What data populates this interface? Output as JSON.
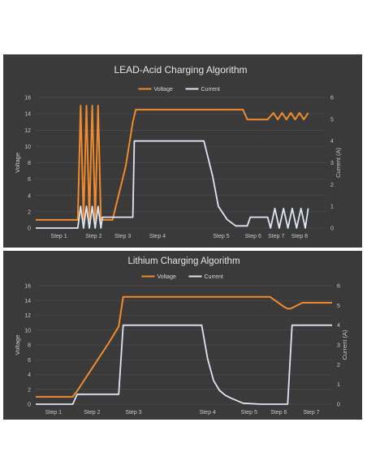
{
  "chart_data": [
    {
      "type": "line",
      "title": "LEAD-Acid Charging Algorithm",
      "ylabel": "Voltage",
      "y2label": "Current (A)",
      "ylim": [
        0,
        16
      ],
      "y2lim": [
        0,
        6
      ],
      "yticks": [
        "0",
        "2",
        "4",
        "6",
        "8",
        "10",
        "12",
        "14",
        "16"
      ],
      "y2ticks": [
        "0",
        "1",
        "2",
        "3",
        "4",
        "5",
        "6"
      ],
      "xlim": [
        0,
        100
      ],
      "grid": true,
      "legend_position": "top-center",
      "colors": {
        "voltage": "#f08a2c",
        "current": "#dfe5f2"
      },
      "step_labels": [
        {
          "label": "Step 1",
          "x": 8
        },
        {
          "label": "Step 2",
          "x": 20
        },
        {
          "label": "Step 3",
          "x": 30
        },
        {
          "label": "Step 4",
          "x": 42
        },
        {
          "label": "Step 5",
          "x": 64
        },
        {
          "label": "Step 6",
          "x": 75
        },
        {
          "label": "Step 7",
          "x": 83
        },
        {
          "label": "Step 8",
          "x": 91
        }
      ],
      "series": [
        {
          "name": "Voltage",
          "axis": "left",
          "x": [
            0,
            14.5,
            15.5,
            16.5,
            17.5,
            18.5,
            19.5,
            20.5,
            21.5,
            22.5,
            23,
            26.5,
            31,
            33.5,
            34.5,
            71.5,
            73,
            80,
            82,
            83.5,
            85,
            86.5,
            88,
            89.5,
            91,
            92.5,
            94
          ],
          "y": [
            1,
            1,
            15,
            1,
            15,
            1,
            15,
            1,
            15,
            1,
            1,
            1,
            7.5,
            13,
            14.5,
            14.5,
            13.3,
            13.3,
            14.1,
            13.3,
            14.1,
            13.3,
            14.1,
            13.3,
            14.1,
            13.3,
            14.1
          ]
        },
        {
          "name": "Current",
          "axis": "right",
          "x": [
            0,
            14.5,
            15.5,
            16.5,
            17.5,
            18.5,
            19.5,
            20.5,
            21.5,
            22.5,
            23,
            33.5,
            34,
            58,
            61,
            63,
            66,
            69,
            73,
            74,
            80,
            81,
            82.5,
            84,
            85.5,
            87,
            88.5,
            90,
            91.5,
            93,
            94
          ],
          "y": [
            0,
            0,
            1,
            0,
            1,
            0,
            1,
            0,
            1,
            0,
            0.5,
            0.5,
            4,
            4,
            2.4,
            1,
            0.4,
            0.1,
            0.1,
            0.5,
            0.5,
            0,
            0.9,
            0,
            0.9,
            0,
            0.9,
            0,
            0.9,
            0,
            0.9
          ]
        }
      ]
    },
    {
      "type": "line",
      "title": "Lithium Charging Algorithm",
      "ylabel": "Voltage",
      "y2label": "Current (A)",
      "ylim": [
        0,
        16
      ],
      "y2lim": [
        0,
        6
      ],
      "yticks": [
        "0",
        "2",
        "4",
        "6",
        "8",
        "10",
        "12",
        "14",
        "16"
      ],
      "y2ticks": [
        "0",
        "1",
        "2",
        "3",
        "4",
        "5",
        "6"
      ],
      "xlim": [
        0,
        100
      ],
      "grid": true,
      "legend_position": "top-center",
      "colors": {
        "voltage": "#f08a2c",
        "current": "#dfe5f2"
      },
      "step_labels": [
        {
          "label": "Step 1",
          "x": 6
        },
        {
          "label": "Step 2",
          "x": 19
        },
        {
          "label": "Step 3",
          "x": 33
        },
        {
          "label": "Step 4",
          "x": 58
        },
        {
          "label": "Step 5",
          "x": 72
        },
        {
          "label": "Step 6",
          "x": 82
        },
        {
          "label": "Step 7",
          "x": 93
        }
      ],
      "series": [
        {
          "name": "Voltage",
          "axis": "left",
          "x": [
            0,
            12.5,
            14,
            25,
            28,
            29.5,
            79,
            84,
            85,
            86,
            88,
            90,
            100
          ],
          "y": [
            1,
            1,
            1.8,
            8.5,
            10.5,
            14.5,
            14.5,
            13.1,
            12.9,
            12.9,
            13.3,
            13.7,
            13.7
          ]
        },
        {
          "name": "Current",
          "axis": "right",
          "x": [
            0,
            12.5,
            14,
            28,
            29.5,
            56,
            58,
            60,
            62,
            64,
            66,
            70,
            76,
            85,
            86.5,
            100
          ],
          "y": [
            0,
            0,
            0.5,
            0.5,
            4,
            4,
            2.3,
            1.2,
            0.7,
            0.45,
            0.3,
            0.05,
            0,
            0,
            4,
            4
          ]
        }
      ]
    }
  ]
}
